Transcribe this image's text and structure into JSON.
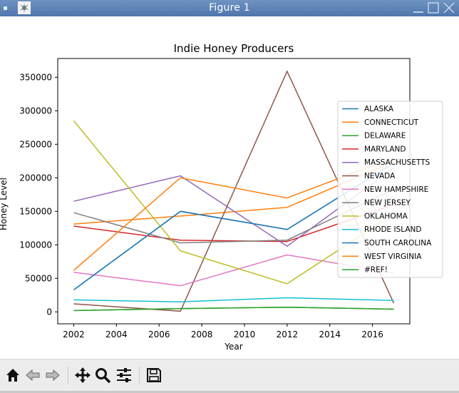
{
  "window": {
    "title": "Figure 1"
  },
  "chart_data": {
    "type": "line",
    "title": "Indie Honey Producers",
    "xlabel": "Year",
    "ylabel": "Honey Level",
    "xlim": [
      2001.25,
      2017.75
    ],
    "ylim": [
      -17800,
      378000
    ],
    "xticks": [
      2002,
      2004,
      2006,
      2008,
      2010,
      2012,
      2014,
      2016
    ],
    "yticks": [
      0,
      50000,
      100000,
      150000,
      200000,
      250000,
      300000,
      350000
    ],
    "legend_position": "center-right",
    "x": [
      2002,
      2007,
      2012,
      2017
    ],
    "series": [
      {
        "name": "ALASKA",
        "color": "#1f77b4",
        "values": [
          33000,
          150000,
          123000,
          222000
        ]
      },
      {
        "name": "CONNECTICUT",
        "color": "#ff7f0e",
        "values": [
          131000,
          143000,
          156000,
          224000
        ]
      },
      {
        "name": "DELAWARE",
        "color": "#2ca02c",
        "values": [
          2000,
          5000,
          7000,
          4000
        ]
      },
      {
        "name": "MARYLAND",
        "color": "#d62728",
        "values": [
          128000,
          107000,
          105000,
          160000
        ]
      },
      {
        "name": "MASSACHUSETTS",
        "color": "#9467bd",
        "values": [
          165000,
          203000,
          98000,
          215000
        ]
      },
      {
        "name": "NEVADA",
        "color": "#8c564b",
        "values": [
          12000,
          1000,
          359000,
          13000
        ]
      },
      {
        "name": "NEW HAMPSHIRE",
        "color": "#e377c2",
        "values": [
          59000,
          39000,
          85000,
          58000
        ]
      },
      {
        "name": "NEW JERSEY",
        "color": "#7f7f7f",
        "values": [
          148000,
          103000,
          107000,
          183000
        ]
      },
      {
        "name": "OKLAHOMA",
        "color": "#bcbd22",
        "values": [
          285000,
          91000,
          42000,
          146000
        ]
      },
      {
        "name": "RHODE ISLAND",
        "color": "#17becf",
        "values": [
          18000,
          15000,
          21000,
          17000
        ]
      },
      {
        "name": "SOUTH CAROLINA",
        "color": "#1f77b4",
        "values": [
          33000,
          150000,
          123000,
          222000
        ]
      },
      {
        "name": "WEST VIRGINIA",
        "color": "#ff7f0e",
        "values": [
          62000,
          200000,
          170000,
          230000
        ]
      },
      {
        "name": "#REF!",
        "color": "#2ca02c",
        "values": [
          2000,
          5000,
          7000,
          4000
        ]
      }
    ]
  },
  "toolbar": {
    "tools": [
      {
        "name": "home-button",
        "icon": "home-icon"
      },
      {
        "name": "back-button",
        "icon": "arrow-left-icon"
      },
      {
        "name": "forward-button",
        "icon": "arrow-right-icon"
      },
      {
        "name": "pan-button",
        "icon": "move-icon"
      },
      {
        "name": "zoom-button",
        "icon": "magnifier-icon"
      },
      {
        "name": "configure-subplots-button",
        "icon": "sliders-icon"
      },
      {
        "name": "save-button",
        "icon": "floppy-disk-icon"
      }
    ]
  }
}
